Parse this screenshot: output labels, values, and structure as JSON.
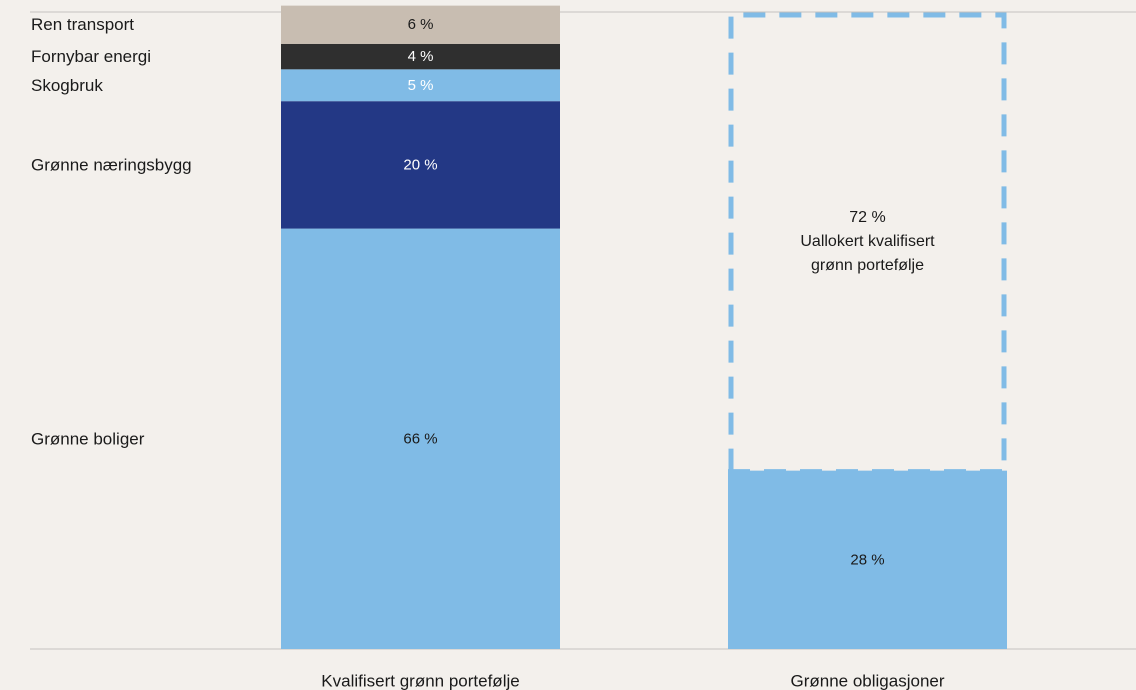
{
  "chart_data": {
    "type": "bar",
    "stacked": true,
    "ylim": [
      0,
      100
    ],
    "categories": [
      "Kvalifisert grønn portefølje",
      "Grønne obligasjoner"
    ],
    "segments": [
      {
        "name": "Grønne boliger",
        "category": 0,
        "value": 66,
        "label": "66 %",
        "color": "#80bbe6",
        "text_color": "#1a1a1a"
      },
      {
        "name": "Grønne næringsbygg",
        "category": 0,
        "value": 20,
        "label": "20 %",
        "color": "#233885",
        "text_color": "#ffffff"
      },
      {
        "name": "Skogbruk",
        "category": 0,
        "value": 5,
        "label": "5 %",
        "color": "#80bbe6",
        "text_color": "#ffffff"
      },
      {
        "name": "Fornybar energi",
        "category": 0,
        "value": 4,
        "label": "4 %",
        "color": "#2f2f2f",
        "text_color": "#ffffff"
      },
      {
        "name": "Ren transport",
        "category": 0,
        "value": 6,
        "label": "6 %",
        "color": "#c8bdb1",
        "text_color": "#1a1a1a"
      },
      {
        "category": 1,
        "value": 28,
        "label": "28 %",
        "color": "#80bbe6",
        "text_color": "#1a1a1a"
      },
      {
        "category": 1,
        "value": 72,
        "label": "72 %",
        "note_lines": [
          "Uallokert kvalifisert",
          "grønn portefølje"
        ],
        "dashed": true,
        "color": "#80bbe6",
        "text_color": "#1a1a1a"
      }
    ],
    "series_labels": [
      "Ren transport",
      "Fornybar energi",
      "Skogbruk",
      "Grønne næringsbygg",
      "Grønne boliger"
    ],
    "colors": {
      "background": "#f3f0ec",
      "axis": "#c4c2bf",
      "text": "#1a1a1a"
    }
  }
}
